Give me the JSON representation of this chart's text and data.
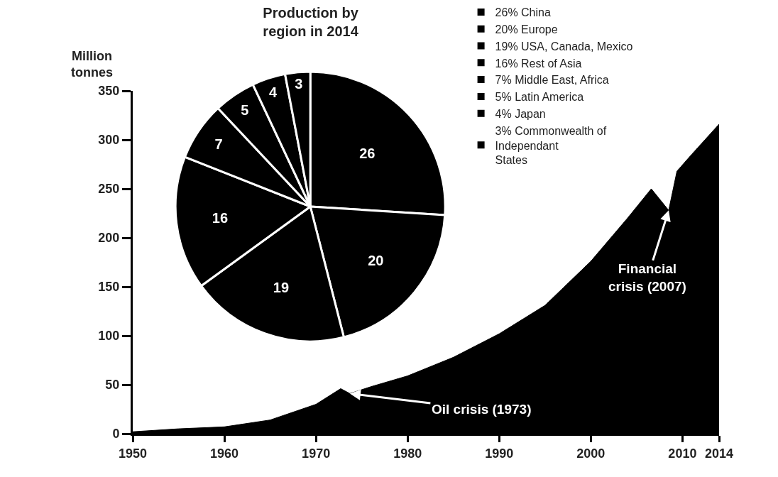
{
  "chart_data": [
    {
      "type": "area",
      "ylabel": "Million tonnes",
      "x": [
        1950,
        1955,
        1960,
        1965,
        1970,
        1972.7,
        1973.7,
        1976,
        1980,
        1985,
        1990,
        1995,
        2000,
        2004,
        2006.6,
        2008.5,
        2009.4,
        2011,
        2014
      ],
      "series": [
        {
          "color": "#000000",
          "values": [
            2,
            5,
            7,
            14,
            30,
            46,
            41,
            48,
            59,
            78,
            102,
            131,
            176,
            220,
            250,
            228,
            268,
            285,
            316
          ]
        }
      ],
      "xlim": [
        1950,
        2014
      ],
      "xticks": [
        1950,
        1960,
        1970,
        1980,
        1990,
        2000,
        2010,
        2014
      ],
      "ylim": [
        0,
        350
      ],
      "yticks": [
        0,
        50,
        100,
        150,
        200,
        250,
        300,
        350
      ],
      "annotations": [
        {
          "text": "Oil crisis (1973)",
          "x": 1973.7,
          "y": 41
        },
        {
          "text": "Financial crisis (2007)",
          "x": 2008.5,
          "y": 228
        }
      ]
    },
    {
      "type": "pie",
      "title": "Production by region in 2014",
      "categories": [
        "26% China",
        "20% Europe",
        "19% USA, Canada, Mexico",
        "16% Rest of Asia",
        "7% Middle East, Africa",
        "5% Latin America",
        "4% Japan",
        "3% Commonwealth of\nIndependant\nStates"
      ],
      "values": [
        26,
        20,
        19,
        16,
        7,
        5,
        4,
        3
      ],
      "colors": [
        "#000000",
        "#000000",
        "#000000",
        "#000000",
        "#000000",
        "#000000",
        "#000000",
        "#000000"
      ],
      "data_labels": true,
      "legend": "top right"
    }
  ]
}
